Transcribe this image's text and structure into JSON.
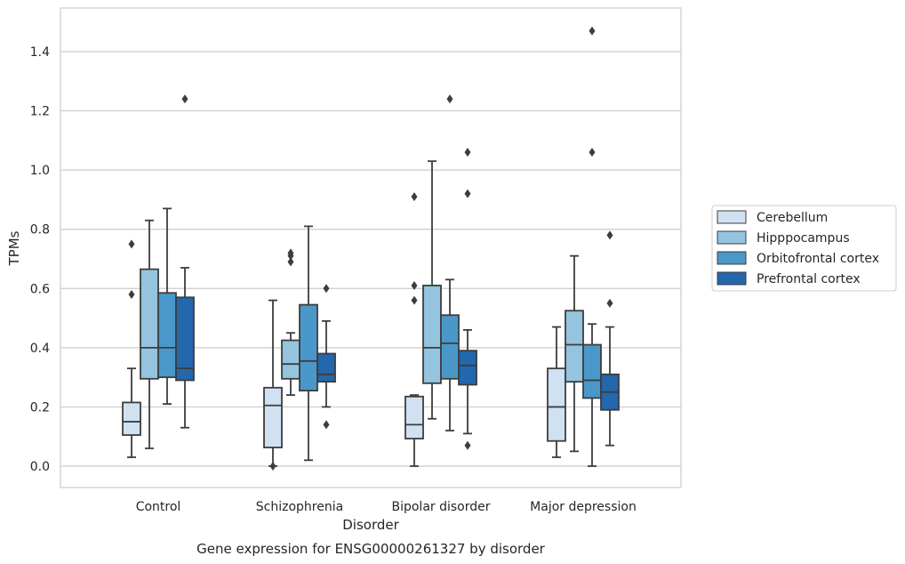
{
  "chart_data": {
    "type": "box",
    "title": "",
    "caption": "Gene expression for ENSG00000261327 by disorder",
    "xlabel": "Disorder",
    "ylabel": "TPMs",
    "ylim": [
      -0.07,
      1.55
    ],
    "yticks": [
      0.0,
      0.2,
      0.4,
      0.6,
      0.8,
      1.0,
      1.2,
      1.4
    ],
    "ytick_labels": [
      "0.0",
      "0.2",
      "0.4",
      "0.6",
      "0.8",
      "1.0",
      "1.2",
      "1.4"
    ],
    "grid": "horizontal",
    "legend_position": "right",
    "categories": [
      "Control",
      "Schizophrenia",
      "Bipolar disorder",
      "Major depression"
    ],
    "series": [
      {
        "name": "Cerebellum",
        "color": "#d0e1f2",
        "boxes": [
          {
            "whisker_low": 0.03,
            "q1": 0.105,
            "median": 0.15,
            "q3": 0.215,
            "whisker_high": 0.33,
            "outliers": []
          },
          {
            "whisker_low": 0.0,
            "q1": 0.063,
            "median": 0.205,
            "q3": 0.265,
            "whisker_high": 0.56,
            "outliers": []
          },
          {
            "whisker_low": 0.0,
            "q1": 0.093,
            "median": 0.14,
            "q3": 0.235,
            "whisker_high": 0.24,
            "outliers": []
          },
          {
            "whisker_low": 0.03,
            "q1": 0.085,
            "median": 0.2,
            "q3": 0.33,
            "whisker_high": 0.47,
            "outliers": []
          }
        ]
      },
      {
        "name": "Hipppocampus",
        "color": "#94c4df",
        "boxes": [
          {
            "whisker_low": 0.06,
            "q1": 0.295,
            "median": 0.4,
            "q3": 0.665,
            "whisker_high": 0.83,
            "outliers": []
          },
          {
            "whisker_low": 0.24,
            "q1": 0.295,
            "median": 0.345,
            "q3": 0.425,
            "whisker_high": 0.45,
            "outliers": [
              0.69,
              0.71,
              0.72
            ]
          },
          {
            "whisker_low": 0.16,
            "q1": 0.28,
            "median": 0.4,
            "q3": 0.61,
            "whisker_high": 1.03,
            "outliers": []
          },
          {
            "whisker_low": 0.05,
            "q1": 0.285,
            "median": 0.41,
            "q3": 0.525,
            "whisker_high": 0.71,
            "outliers": []
          }
        ]
      },
      {
        "name": "Orbitofrontal cortex",
        "color": "#4a98c9",
        "boxes": [
          {
            "whisker_low": 0.21,
            "q1": 0.3,
            "median": 0.4,
            "q3": 0.585,
            "whisker_high": 0.87,
            "outliers": []
          },
          {
            "whisker_low": 0.02,
            "q1": 0.255,
            "median": 0.355,
            "q3": 0.545,
            "whisker_high": 0.81,
            "outliers": []
          },
          {
            "whisker_low": 0.12,
            "q1": 0.295,
            "median": 0.415,
            "q3": 0.51,
            "whisker_high": 0.63,
            "outliers": []
          },
          {
            "whisker_low": 0.0,
            "q1": 0.23,
            "median": 0.29,
            "q3": 0.41,
            "whisker_high": 0.48,
            "outliers": []
          }
        ]
      },
      {
        "name": "Prefrontal cortex",
        "color": "#2367ac",
        "boxes": [
          {
            "whisker_low": 0.13,
            "q1": 0.29,
            "median": 0.33,
            "q3": 0.57,
            "whisker_high": 0.67,
            "outliers": []
          },
          {
            "whisker_low": 0.2,
            "q1": 0.285,
            "median": 0.31,
            "q3": 0.38,
            "whisker_high": 0.49,
            "outliers": []
          },
          {
            "whisker_low": 0.11,
            "q1": 0.275,
            "median": 0.34,
            "q3": 0.39,
            "whisker_high": 0.46,
            "outliers": []
          },
          {
            "whisker_low": 0.07,
            "q1": 0.19,
            "median": 0.25,
            "q3": 0.31,
            "whisker_high": 0.47,
            "outliers": []
          }
        ]
      }
    ],
    "outliers_by_category": [
      [
        [
          0.75,
          0.58
        ],
        [],
        [],
        [
          1.24
        ]
      ],
      [
        [
          0.0
        ],
        [
          0.69,
          0.71,
          0.72
        ],
        [],
        [
          0.6,
          0.14
        ]
      ],
      [
        [
          0.91,
          0.61,
          0.56
        ],
        [],
        [
          1.24
        ],
        [
          1.06,
          0.92,
          0.07
        ]
      ],
      [
        [],
        [],
        [
          1.47,
          1.06
        ],
        [
          0.78,
          0.55
        ]
      ]
    ]
  }
}
